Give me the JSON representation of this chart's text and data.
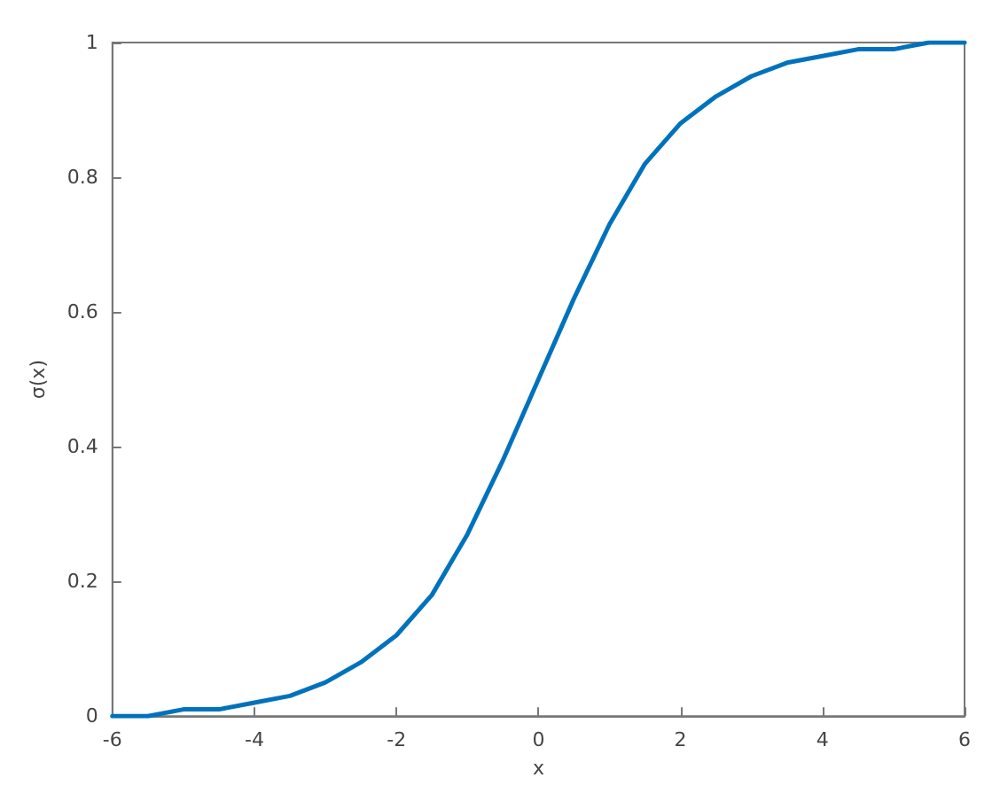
{
  "chart_data": {
    "type": "line",
    "xlabel": "x",
    "ylabel": "σ(x)",
    "x": [
      -6,
      -5.5,
      -5,
      -4.5,
      -4,
      -3.5,
      -3,
      -2.5,
      -2,
      -1.5,
      -1,
      -0.5,
      0,
      0.5,
      1,
      1.5,
      2,
      2.5,
      3,
      3.5,
      4,
      4.5,
      5,
      5.5,
      6
    ],
    "series": [
      {
        "color": "#0072bd",
        "values": [
          0.0,
          0.0,
          0.01,
          0.01,
          0.02,
          0.03,
          0.05,
          0.08,
          0.12,
          0.18,
          0.27,
          0.38,
          0.5,
          0.62,
          0.73,
          0.82,
          0.88,
          0.92,
          0.95,
          0.97,
          0.98,
          0.99,
          0.99,
          1.0,
          1.0
        ]
      }
    ],
    "xlim": [
      -6,
      6
    ],
    "xticks": [
      -6,
      -4,
      -2,
      0,
      2,
      4,
      6
    ],
    "ylim": [
      0,
      1
    ],
    "yticks": [
      0,
      0.2,
      0.4,
      0.6,
      0.8,
      1
    ],
    "grid": false,
    "marker": "none",
    "line_style": "solid"
  }
}
